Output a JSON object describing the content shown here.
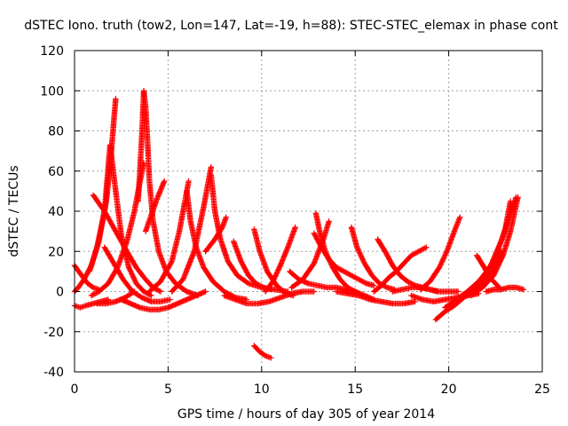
{
  "chart_data": {
    "type": "scatter",
    "title": "dSTEC Iono. truth (tow2, Lon=147, Lat=-19, h=88): STEC-STEC_elemax in phase cont",
    "xlabel": "GPS time / hours of day 305 of year 2014",
    "ylabel": "dSTEC  / TECUs",
    "xlim": [
      0,
      25
    ],
    "ylim": [
      -40,
      120
    ],
    "xticks": [
      0,
      5,
      10,
      15,
      20,
      25
    ],
    "yticks": [
      -40,
      -20,
      0,
      20,
      40,
      60,
      80,
      100,
      120
    ],
    "grid": true,
    "legend": "none",
    "marker": "plus",
    "color": "#ff0000",
    "series": [
      {
        "x": [
          0.0,
          0.2,
          0.5,
          0.9,
          1.3,
          1.7,
          1.95,
          2.1,
          2.2
        ],
        "y": [
          0,
          2,
          6,
          13,
          25,
          45,
          68,
          85,
          96
        ]
      },
      {
        "x": [
          0.8,
          1.2,
          1.6,
          1.9,
          2.2,
          2.5,
          2.9,
          3.3,
          3.7,
          4.1
        ],
        "y": [
          10,
          22,
          40,
          73,
          50,
          28,
          12,
          4,
          0,
          -2
        ]
      },
      {
        "x": [
          0.9,
          1.3,
          1.8,
          2.3,
          2.8,
          3.2,
          3.5,
          3.7
        ],
        "y": [
          -2,
          0,
          4,
          12,
          25,
          40,
          55,
          64
        ]
      },
      {
        "x": [
          3.4,
          3.6,
          3.7,
          3.8,
          3.9,
          4.0,
          4.2,
          4.5,
          4.9,
          5.4,
          6.0,
          6.6
        ],
        "y": [
          45,
          78,
          100,
          92,
          75,
          55,
          35,
          20,
          10,
          4,
          0,
          -2
        ]
      },
      {
        "x": [
          3.8,
          4.1,
          4.4,
          4.8
        ],
        "y": [
          30,
          38,
          46,
          55
        ]
      },
      {
        "x": [
          1.0,
          1.6,
          2.2,
          2.8,
          3.3,
          3.8,
          4.2,
          4.6
        ],
        "y": [
          48,
          40,
          30,
          20,
          12,
          6,
          2,
          0
        ]
      },
      {
        "x": [
          0.0,
          0.3,
          0.7,
          1.0,
          1.3
        ],
        "y": [
          13,
          9,
          4,
          2,
          1
        ]
      },
      {
        "x": [
          0.0,
          0.3,
          0.6,
          1.0,
          1.4,
          1.8
        ],
        "y": [
          -7,
          -8,
          -7,
          -6,
          -5,
          -4
        ]
      },
      {
        "x": [
          1.6,
          2.1,
          2.6,
          3.1,
          3.6,
          4.1,
          4.6,
          5.1
        ],
        "y": [
          22,
          14,
          6,
          0,
          -3,
          -5,
          -5,
          -4
        ]
      },
      {
        "x": [
          1.2,
          1.7,
          2.2,
          2.7,
          3.2
        ],
        "y": [
          -6,
          -6,
          -5,
          -3,
          0
        ]
      },
      {
        "x": [
          2.5,
          3.0,
          3.5,
          4.0,
          4.5,
          5.0,
          5.5,
          6.0,
          6.5,
          7.0
        ],
        "y": [
          -4,
          -6,
          -8,
          -9,
          -9,
          -8,
          -6,
          -4,
          -2,
          0
        ]
      },
      {
        "x": [
          4.0,
          4.6,
          5.2,
          5.6,
          5.9,
          6.1
        ],
        "y": [
          0,
          5,
          15,
          30,
          45,
          55
        ]
      },
      {
        "x": [
          6.0,
          6.2,
          6.5,
          6.9,
          7.4,
          8.0,
          8.6,
          9.2
        ],
        "y": [
          50,
          35,
          22,
          12,
          5,
          0,
          -3,
          -4
        ]
      },
      {
        "x": [
          5.2,
          5.8,
          6.4,
          6.9,
          7.3
        ],
        "y": [
          0,
          6,
          20,
          42,
          62
        ]
      },
      {
        "x": [
          7.3,
          7.5,
          7.8,
          8.2,
          8.7,
          9.3,
          10.0,
          10.7,
          11.4
        ],
        "y": [
          58,
          40,
          26,
          15,
          8,
          4,
          2,
          1,
          0
        ]
      },
      {
        "x": [
          7.0,
          7.5,
          7.9,
          8.1
        ],
        "y": [
          20,
          26,
          32,
          37
        ]
      },
      {
        "x": [
          8.5,
          8.9,
          9.3,
          9.7,
          10.1,
          10.5
        ],
        "y": [
          25,
          15,
          8,
          4,
          2,
          1
        ]
      },
      {
        "x": [
          9.6,
          9.9,
          10.3,
          10.8,
          11.3,
          11.7
        ],
        "y": [
          31,
          20,
          10,
          3,
          -1,
          -2
        ]
      },
      {
        "x": [
          10.2,
          10.6,
          11.0,
          11.4,
          11.8
        ],
        "y": [
          0,
          5,
          13,
          22,
          32
        ]
      },
      {
        "x": [
          8.0,
          8.6,
          9.2,
          9.8,
          10.4,
          11.0,
          11.6,
          12.2,
          12.8
        ],
        "y": [
          -2,
          -4,
          -6,
          -6,
          -5,
          -3,
          -1,
          0,
          0
        ]
      },
      {
        "x": [
          9.6,
          9.9,
          10.2,
          10.5
        ],
        "y": [
          -27,
          -30,
          -32,
          -33
        ]
      },
      {
        "x": [
          11.5,
          12.0,
          12.5,
          13.0,
          13.5,
          14.0,
          14.5,
          15.0,
          15.5,
          16.0
        ],
        "y": [
          10,
          6,
          4,
          3,
          2,
          2,
          1,
          0,
          -2,
          -4
        ]
      },
      {
        "x": [
          12.8,
          13.2,
          13.6,
          14.0,
          14.4,
          14.8,
          15.2,
          15.6,
          16.0
        ],
        "y": [
          29,
          22,
          16,
          12,
          10,
          8,
          6,
          4,
          3
        ]
      },
      {
        "x": [
          12.9,
          13.1,
          13.4,
          13.8,
          14.2,
          14.6,
          15.0
        ],
        "y": [
          39,
          30,
          20,
          12,
          6,
          2,
          0
        ]
      },
      {
        "x": [
          11.6,
          12.2,
          12.8,
          13.3,
          13.6
        ],
        "y": [
          2,
          6,
          14,
          26,
          35
        ]
      },
      {
        "x": [
          14.8,
          15.1,
          15.5,
          15.9,
          16.3,
          16.7,
          17.1
        ],
        "y": [
          32,
          22,
          14,
          8,
          4,
          2,
          1
        ]
      },
      {
        "x": [
          14.0,
          14.6,
          15.2,
          15.8,
          16.4,
          17.0,
          17.6,
          18.2
        ],
        "y": [
          0,
          -1,
          -2,
          -4,
          -5,
          -6,
          -6,
          -5
        ]
      },
      {
        "x": [
          16.0,
          16.4,
          16.8,
          17.2,
          17.6,
          18.0,
          18.4,
          18.8
        ],
        "y": [
          0,
          3,
          7,
          10,
          14,
          18,
          20,
          22
        ]
      },
      {
        "x": [
          16.2,
          16.6,
          17.0,
          17.4,
          17.8,
          18.2,
          18.6,
          19.0,
          19.4
        ],
        "y": [
          26,
          20,
          13,
          8,
          5,
          3,
          2,
          1,
          0
        ]
      },
      {
        "x": [
          17.0,
          17.5,
          18.0,
          18.5,
          19.0,
          19.5,
          20.0,
          20.5
        ],
        "y": [
          0,
          1,
          2,
          2,
          1,
          0,
          0,
          0
        ]
      },
      {
        "x": [
          18.5,
          19.0,
          19.5,
          19.9,
          20.3,
          20.6
        ],
        "y": [
          1,
          5,
          12,
          20,
          30,
          37
        ]
      },
      {
        "x": [
          18.0,
          18.6,
          19.2,
          19.8,
          20.4,
          21.0,
          21.6
        ],
        "y": [
          -2,
          -4,
          -5,
          -4,
          -3,
          -2,
          -1
        ]
      },
      {
        "x": [
          19.3,
          19.8,
          20.3,
          20.8,
          21.3,
          21.8,
          22.3,
          22.8
        ],
        "y": [
          -14,
          -10,
          -7,
          -3,
          0,
          4,
          10,
          20
        ]
      },
      {
        "x": [
          19.8,
          20.4,
          21.0,
          21.6,
          22.2,
          22.6,
          23.0,
          23.3
        ],
        "y": [
          -8,
          -4,
          0,
          5,
          12,
          20,
          30,
          45
        ]
      },
      {
        "x": [
          20.5,
          21.1,
          21.7,
          22.3,
          22.8,
          23.2,
          23.6
        ],
        "y": [
          -4,
          0,
          5,
          14,
          25,
          36,
          47
        ]
      },
      {
        "x": [
          21.2,
          21.8,
          22.4,
          22.9,
          23.3,
          23.7
        ],
        "y": [
          -2,
          2,
          8,
          18,
          30,
          47
        ]
      },
      {
        "x": [
          22.0,
          22.4,
          22.8,
          23.2,
          23.6,
          24.0
        ],
        "y": [
          0,
          1,
          1,
          2,
          2,
          1
        ]
      },
      {
        "x": [
          21.5,
          21.9,
          22.2,
          22.5,
          22.7
        ],
        "y": [
          18,
          12,
          7,
          4,
          2
        ]
      }
    ]
  }
}
